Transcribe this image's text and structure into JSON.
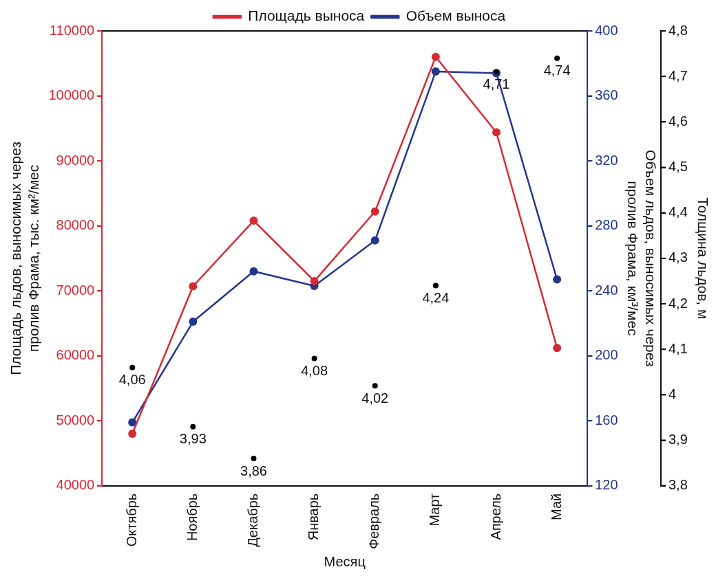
{
  "chart_data": {
    "type": "line",
    "categories": [
      "Октябрь",
      "Ноябрь",
      "Декабрь",
      "Январь",
      "Февраль",
      "Март",
      "Апрель",
      "Май"
    ],
    "xlabel": "Месяц",
    "ylabel": "Площадь льдов, выносимых через пролив Фрама, тыс. км²/мес",
    "y2label": "Объем льдов, выносимых через пролив Фрама, км³/мес",
    "y3label": "Толщина льдов, м",
    "series": [
      {
        "name": "Площадь выноса",
        "color": "#d62a33",
        "values": [
          48000,
          70700,
          80800,
          71500,
          82200,
          106000,
          94400,
          61200
        ]
      },
      {
        "name": "Объем выноса",
        "color": "#23358f",
        "axis": "y2",
        "values": [
          159,
          221,
          252,
          243,
          271,
          375,
          374,
          247
        ]
      },
      {
        "type": "scatter",
        "color": "#000000",
        "axis": "y3",
        "values": [
          4.06,
          3.93,
          3.86,
          4.08,
          4.02,
          4.24,
          4.71,
          4.74
        ],
        "value_labels": [
          "4,06",
          "3,93",
          "3,86",
          "4,08",
          "4,02",
          "4,24",
          "4,71",
          "4,74"
        ]
      }
    ],
    "ylim": [
      40000,
      110000
    ],
    "yticks": [
      40000,
      50000,
      60000,
      70000,
      80000,
      90000,
      100000,
      110000
    ],
    "y2lim": [
      120,
      400
    ],
    "y2ticks": [
      120,
      160,
      200,
      240,
      280,
      320,
      360,
      400
    ],
    "y3lim": [
      3.8,
      4.8
    ],
    "y3ticks": [
      {
        "value": 3.8,
        "label": "3,8"
      },
      {
        "value": 3.9,
        "label": "3,9"
      },
      {
        "value": 4,
        "label": "4"
      },
      {
        "value": 4.1,
        "label": "4,1"
      },
      {
        "value": 4.2,
        "label": "4,2"
      },
      {
        "value": 4.3,
        "label": "4,3"
      },
      {
        "value": 4.4,
        "label": "4,4"
      },
      {
        "value": 4.5,
        "label": "4,5"
      },
      {
        "value": 4.6,
        "label": "4,6"
      },
      {
        "value": 4.7,
        "label": "4,7"
      },
      {
        "value": 4.8,
        "label": "4,8"
      }
    ],
    "grid": false,
    "legend": "top",
    "marker": "circle",
    "line_style": "solid"
  }
}
